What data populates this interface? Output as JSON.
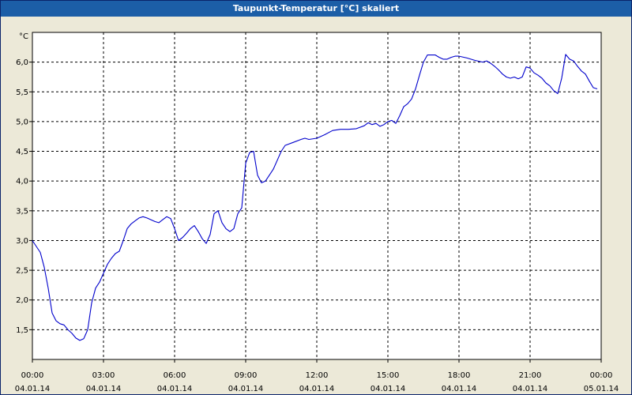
{
  "window": {
    "title": "Taupunkt-Temperatur [°C] skaliert"
  },
  "chart_data": {
    "type": "line",
    "title": "Taupunkt-Temperatur [°C] skaliert",
    "ylabel": "°C",
    "xlabel": "",
    "ylim": [
      1.0,
      6.5
    ],
    "xlim": [
      "2014-01-04T00:00",
      "2014-01-05T00:00"
    ],
    "grid": true,
    "line_color": "#0000cc",
    "y_ticks": [
      {
        "value": 1.5,
        "label": "1,5"
      },
      {
        "value": 2.0,
        "label": "2,0"
      },
      {
        "value": 2.5,
        "label": "2,5"
      },
      {
        "value": 3.0,
        "label": "3,0"
      },
      {
        "value": 3.5,
        "label": "3,5"
      },
      {
        "value": 4.0,
        "label": "4,0"
      },
      {
        "value": 4.5,
        "label": "4,5"
      },
      {
        "value": 5.0,
        "label": "5,0"
      },
      {
        "value": 5.5,
        "label": "5,5"
      },
      {
        "value": 6.0,
        "label": "6,0"
      }
    ],
    "x_ticks": [
      {
        "value": "2014-01-04T00:00",
        "time": "00:00",
        "date": "04.01.14"
      },
      {
        "value": "2014-01-04T03:00",
        "time": "03:00",
        "date": "04.01.14"
      },
      {
        "value": "2014-01-04T06:00",
        "time": "06:00",
        "date": "04.01.14"
      },
      {
        "value": "2014-01-04T09:00",
        "time": "09:00",
        "date": "04.01.14"
      },
      {
        "value": "2014-01-04T12:00",
        "time": "12:00",
        "date": "04.01.14"
      },
      {
        "value": "2014-01-04T15:00",
        "time": "15:00",
        "date": "04.01.14"
      },
      {
        "value": "2014-01-04T18:00",
        "time": "18:00",
        "date": "04.01.14"
      },
      {
        "value": "2014-01-04T21:00",
        "time": "21:00",
        "date": "04.01.14"
      },
      {
        "value": "2014-01-05T00:00",
        "time": "00:00",
        "date": "05.01.14"
      }
    ],
    "series": [
      {
        "x": [
          "2014-01-04T00:00",
          "2014-01-04T00:20",
          "2014-01-04T00:30",
          "2014-01-04T00:40",
          "2014-01-04T00:50",
          "2014-01-04T01:00",
          "2014-01-04T01:10",
          "2014-01-04T01:20",
          "2014-01-04T01:30",
          "2014-01-04T01:40",
          "2014-01-04T01:50",
          "2014-01-04T02:00",
          "2014-01-04T02:10",
          "2014-01-04T02:20",
          "2014-01-04T02:30",
          "2014-01-04T02:40",
          "2014-01-04T02:50",
          "2014-01-04T03:00",
          "2014-01-04T03:10",
          "2014-01-04T03:20",
          "2014-01-04T03:30",
          "2014-01-04T03:40",
          "2014-01-04T03:50",
          "2014-01-04T04:00",
          "2014-01-04T04:10",
          "2014-01-04T04:20",
          "2014-01-04T04:30",
          "2014-01-04T04:40",
          "2014-01-04T04:50",
          "2014-01-04T05:00",
          "2014-01-04T05:10",
          "2014-01-04T05:20",
          "2014-01-04T05:30",
          "2014-01-04T05:40",
          "2014-01-04T05:50",
          "2014-01-04T06:00",
          "2014-01-04T06:10",
          "2014-01-04T06:20",
          "2014-01-04T06:30",
          "2014-01-04T06:40",
          "2014-01-04T06:50",
          "2014-01-04T07:00",
          "2014-01-04T07:10",
          "2014-01-04T07:20",
          "2014-01-04T07:30",
          "2014-01-04T07:40",
          "2014-01-04T07:50",
          "2014-01-04T08:00",
          "2014-01-04T08:10",
          "2014-01-04T08:20",
          "2014-01-04T08:30",
          "2014-01-04T08:40",
          "2014-01-04T08:50",
          "2014-01-04T09:00",
          "2014-01-04T09:10",
          "2014-01-04T09:20",
          "2014-01-04T09:30",
          "2014-01-04T09:40",
          "2014-01-04T09:50",
          "2014-01-04T10:00",
          "2014-01-04T10:10",
          "2014-01-04T10:20",
          "2014-01-04T10:30",
          "2014-01-04T10:40",
          "2014-01-04T11:00",
          "2014-01-04T11:20",
          "2014-01-04T11:30",
          "2014-01-04T11:40",
          "2014-01-04T12:00",
          "2014-01-04T12:20",
          "2014-01-04T12:40",
          "2014-01-04T13:00",
          "2014-01-04T13:20",
          "2014-01-04T13:40",
          "2014-01-04T14:00",
          "2014-01-04T14:10",
          "2014-01-04T14:20",
          "2014-01-04T14:30",
          "2014-01-04T14:40",
          "2014-01-04T14:50",
          "2014-01-04T15:00",
          "2014-01-04T15:10",
          "2014-01-04T15:20",
          "2014-01-04T15:30",
          "2014-01-04T15:40",
          "2014-01-04T15:50",
          "2014-01-04T16:00",
          "2014-01-04T16:10",
          "2014-01-04T16:20",
          "2014-01-04T16:30",
          "2014-01-04T16:40",
          "2014-01-04T16:50",
          "2014-01-04T17:00",
          "2014-01-04T17:10",
          "2014-01-04T17:20",
          "2014-01-04T17:30",
          "2014-01-04T17:40",
          "2014-01-04T17:50",
          "2014-01-04T18:00",
          "2014-01-04T18:20",
          "2014-01-04T18:40",
          "2014-01-04T19:00",
          "2014-01-04T19:10",
          "2014-01-04T19:20",
          "2014-01-04T19:30",
          "2014-01-04T19:40",
          "2014-01-04T19:50",
          "2014-01-04T20:00",
          "2014-01-04T20:10",
          "2014-01-04T20:20",
          "2014-01-04T20:30",
          "2014-01-04T20:40",
          "2014-01-04T20:50",
          "2014-01-04T21:00",
          "2014-01-04T21:10",
          "2014-01-04T21:20",
          "2014-01-04T21:30",
          "2014-01-04T21:40",
          "2014-01-04T21:50",
          "2014-01-04T22:00",
          "2014-01-04T22:10",
          "2014-01-04T22:20",
          "2014-01-04T22:30",
          "2014-01-04T22:40",
          "2014-01-04T22:50",
          "2014-01-04T23:00",
          "2014-01-04T23:10",
          "2014-01-04T23:20",
          "2014-01-04T23:30",
          "2014-01-04T23:40",
          "2014-01-04T23:50"
        ],
        "values": [
          3.0,
          2.8,
          2.55,
          2.2,
          1.78,
          1.65,
          1.6,
          1.58,
          1.5,
          1.44,
          1.36,
          1.32,
          1.35,
          1.5,
          1.95,
          2.2,
          2.3,
          2.45,
          2.6,
          2.7,
          2.78,
          2.82,
          3.0,
          3.2,
          3.28,
          3.33,
          3.38,
          3.4,
          3.38,
          3.35,
          3.32,
          3.3,
          3.35,
          3.4,
          3.37,
          3.2,
          3.0,
          3.05,
          3.12,
          3.2,
          3.25,
          3.15,
          3.03,
          2.95,
          3.1,
          3.45,
          3.5,
          3.3,
          3.2,
          3.15,
          3.2,
          3.45,
          3.55,
          4.3,
          4.48,
          4.5,
          4.1,
          3.97,
          4.0,
          4.1,
          4.2,
          4.35,
          4.5,
          4.6,
          4.65,
          4.7,
          4.72,
          4.7,
          4.72,
          4.78,
          4.85,
          4.87,
          4.87,
          4.88,
          4.93,
          4.98,
          4.95,
          4.97,
          4.92,
          4.95,
          5.0,
          5.02,
          4.97,
          5.1,
          5.25,
          5.3,
          5.38,
          5.55,
          5.78,
          6.0,
          6.12,
          6.12,
          6.12,
          6.08,
          6.05,
          6.05,
          6.08,
          6.1,
          6.1,
          6.07,
          6.03,
          6.0,
          6.02,
          5.98,
          5.93,
          5.87,
          5.8,
          5.75,
          5.73,
          5.75,
          5.72,
          5.75,
          5.92,
          5.9,
          5.82,
          5.78,
          5.73,
          5.65,
          5.6,
          5.52,
          5.47,
          5.73,
          6.13,
          6.05,
          6.02,
          5.93,
          5.85,
          5.8,
          5.68,
          5.57,
          5.55
        ]
      }
    ]
  }
}
